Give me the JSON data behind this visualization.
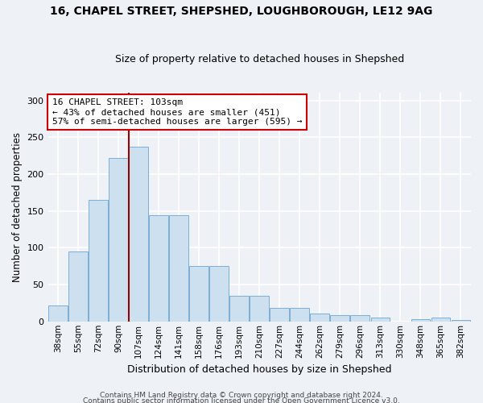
{
  "title1": "16, CHAPEL STREET, SHEPSHED, LOUGHBOROUGH, LE12 9AG",
  "title2": "Size of property relative to detached houses in Shepshed",
  "xlabel": "Distribution of detached houses by size in Shepshed",
  "ylabel": "Number of detached properties",
  "bar_color": "#cce0f0",
  "bar_edge_color": "#7aafd4",
  "categories": [
    "38sqm",
    "55sqm",
    "72sqm",
    "90sqm",
    "107sqm",
    "124sqm",
    "141sqm",
    "158sqm",
    "176sqm",
    "193sqm",
    "210sqm",
    "227sqm",
    "244sqm",
    "262sqm",
    "279sqm",
    "296sqm",
    "313sqm",
    "330sqm",
    "348sqm",
    "365sqm",
    "382sqm"
  ],
  "values": [
    22,
    95,
    165,
    222,
    237,
    144,
    144,
    75,
    75,
    35,
    35,
    18,
    18,
    11,
    8,
    8,
    5,
    0,
    3,
    5,
    2
  ],
  "vline_index": 4,
  "vline_color": "#990000",
  "annotation_text": "16 CHAPEL STREET: 103sqm\n← 43% of detached houses are smaller (451)\n57% of semi-detached houses are larger (595) →",
  "annotation_box_color": "white",
  "annotation_box_edge": "#cc0000",
  "ylim": [
    0,
    310
  ],
  "yticks": [
    0,
    50,
    100,
    150,
    200,
    250,
    300
  ],
  "footer1": "Contains HM Land Registry data © Crown copyright and database right 2024.",
  "footer2": "Contains public sector information licensed under the Open Government Licence v3.0.",
  "background_color": "#eef2f7"
}
